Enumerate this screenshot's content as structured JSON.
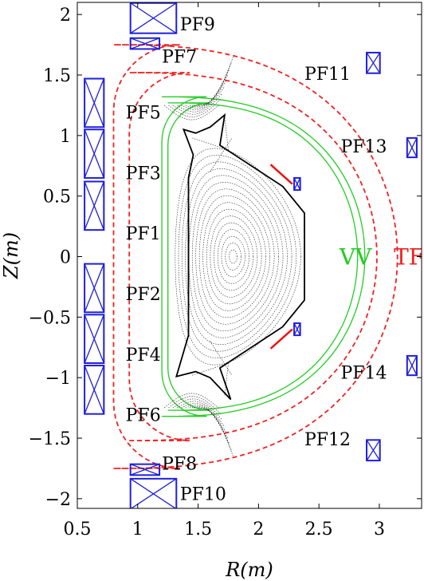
{
  "axes": {
    "xlabel": "R(m)",
    "ylabel": "Z(m)",
    "xticks": [
      {
        "value": 0.5,
        "label": "0.5"
      },
      {
        "value": 1,
        "label": "1"
      },
      {
        "value": 1.5,
        "label": "1.5"
      },
      {
        "value": 2,
        "label": "2"
      },
      {
        "value": 2.5,
        "label": "2.5"
      },
      {
        "value": 3,
        "label": "3"
      }
    ],
    "yticks": [
      {
        "value": 2,
        "label": "2"
      },
      {
        "value": 1.5,
        "label": "1.5"
      },
      {
        "value": 1,
        "label": "1"
      },
      {
        "value": 0.5,
        "label": "0.5"
      },
      {
        "value": 0,
        "label": "0"
      },
      {
        "value": -0.5,
        "label": "−0.5"
      },
      {
        "value": -1,
        "label": "−1"
      },
      {
        "value": -1.5,
        "label": "−1.5"
      },
      {
        "value": -2,
        "label": "−2"
      }
    ],
    "xlim": [
      0.5,
      3.35
    ],
    "ylim": [
      -2.08,
      2.1
    ]
  },
  "coils": [
    {
      "name": "PF1",
      "r": 0.64,
      "z": 0.42,
      "w": 0.16,
      "h": 0.4
    },
    {
      "name": "PF2",
      "r": 0.64,
      "z": -0.26,
      "w": 0.16,
      "h": 0.4
    },
    {
      "name": "PF3",
      "r": 0.64,
      "z": 0.85,
      "w": 0.16,
      "h": 0.4
    },
    {
      "name": "PF4",
      "r": 0.64,
      "z": -0.68,
      "w": 0.16,
      "h": 0.4
    },
    {
      "name": "PF5",
      "r": 0.64,
      "z": 1.27,
      "w": 0.16,
      "h": 0.4
    },
    {
      "name": "PF6",
      "r": 0.64,
      "z": -1.1,
      "w": 0.16,
      "h": 0.4
    },
    {
      "name": "PF7",
      "r": 1.06,
      "z": 1.76,
      "w": 0.24,
      "h": 0.09
    },
    {
      "name": "PF8",
      "r": 1.06,
      "z": -1.76,
      "w": 0.24,
      "h": 0.09
    },
    {
      "name": "PF9",
      "r": 1.13,
      "z": 1.97,
      "w": 0.38,
      "h": 0.25
    },
    {
      "name": "PF10",
      "r": 1.13,
      "z": -1.96,
      "w": 0.38,
      "h": 0.25
    },
    {
      "name": "PF11",
      "r": 2.95,
      "z": 1.6,
      "w": 0.11,
      "h": 0.17
    },
    {
      "name": "PF12",
      "r": 2.95,
      "z": -1.6,
      "w": 0.11,
      "h": 0.17
    },
    {
      "name": "PF13",
      "r": 3.27,
      "z": 0.9,
      "w": 0.08,
      "h": 0.16
    },
    {
      "name": "PF14",
      "r": 3.27,
      "z": -0.9,
      "w": 0.08,
      "h": 0.16
    }
  ],
  "small_coils": [
    {
      "r": 2.32,
      "z": 0.6,
      "w": 0.05,
      "h": 0.1
    },
    {
      "r": 2.32,
      "z": -0.6,
      "w": 0.05,
      "h": 0.1
    }
  ],
  "labels": [
    {
      "text": "PF9",
      "r": 1.35,
      "z": 1.93
    },
    {
      "text": "PF7",
      "r": 1.2,
      "z": 1.66
    },
    {
      "text": "PF11",
      "r": 2.38,
      "z": 1.52
    },
    {
      "text": "PF5",
      "r": 0.9,
      "z": 1.2
    },
    {
      "text": "PF13",
      "r": 2.68,
      "z": 0.92
    },
    {
      "text": "PF3",
      "r": 0.9,
      "z": 0.7
    },
    {
      "text": "PF1",
      "r": 0.9,
      "z": 0.2
    },
    {
      "text": "PF2",
      "r": 0.9,
      "z": -0.3
    },
    {
      "text": "PF4",
      "r": 0.9,
      "z": -0.8
    },
    {
      "text": "PF14",
      "r": 2.68,
      "z": -0.95
    },
    {
      "text": "PF6",
      "r": 0.9,
      "z": -1.3
    },
    {
      "text": "PF12",
      "r": 2.38,
      "z": -1.5
    },
    {
      "text": "PF8",
      "r": 1.2,
      "z": -1.7
    },
    {
      "text": "PF10",
      "r": 1.35,
      "z": -1.95
    }
  ],
  "region_labels": {
    "vv": {
      "text": "VV",
      "r": 2.67,
      "z": 0.0,
      "color": "#22cc22"
    },
    "tf": {
      "text": "TF",
      "r": 3.12,
      "z": 0.0,
      "color": "#ee2222"
    }
  },
  "colors": {
    "coil": "#1f1fdd",
    "tf": "#ee2222",
    "vv": "#22cc22",
    "wall": "#000000",
    "flux": "#222222",
    "limiter": "#ee1111"
  }
}
